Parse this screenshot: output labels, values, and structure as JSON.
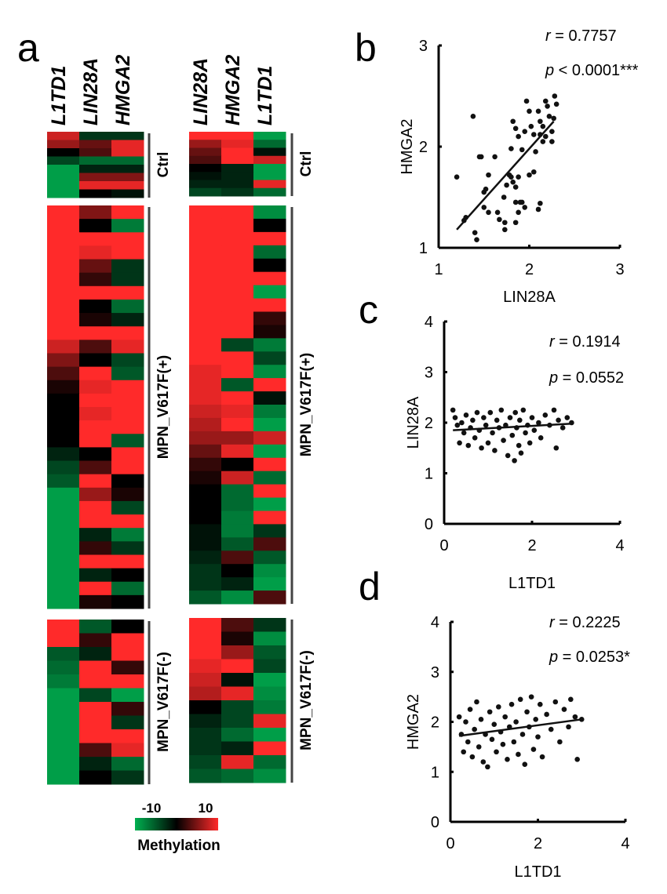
{
  "panel_labels": {
    "a": "a",
    "b": "b",
    "c": "c",
    "d": "d"
  },
  "colorbar": {
    "min_label": "-10",
    "max_label": "10",
    "title": "Methylation",
    "low_color": "#00b050",
    "mid_color": "#000000",
    "high_color": "#ff2a2a"
  },
  "chart_data": [
    {
      "type": "heatmap",
      "panel": "a-left",
      "columns": [
        "L1TD1",
        "LIN28A",
        "HMGA2"
      ],
      "range": [
        -10,
        10
      ],
      "groups": [
        {
          "name": "Ctrl",
          "rows": [
            [
              8,
              -3,
              -3
            ],
            [
              6,
              4,
              9
            ],
            [
              0,
              3,
              9
            ],
            [
              -4,
              -6,
              -6
            ],
            [
              -9,
              -2,
              -2
            ],
            [
              -9,
              5,
              5
            ],
            [
              -9,
              9,
              9
            ],
            [
              -9,
              0,
              -1
            ]
          ]
        },
        {
          "name": "MPN_V617F(+)",
          "rows": [
            [
              10,
              5,
              10
            ],
            [
              10,
              0,
              -7
            ],
            [
              10,
              10,
              10
            ],
            [
              10,
              9,
              10
            ],
            [
              10,
              4,
              -3
            ],
            [
              10,
              2,
              -3
            ],
            [
              10,
              10,
              10
            ],
            [
              10,
              0,
              -6
            ],
            [
              10,
              1,
              -2
            ],
            [
              10,
              10,
              10
            ],
            [
              8,
              3,
              9
            ],
            [
              5,
              0,
              -4
            ],
            [
              3,
              10,
              -5
            ],
            [
              1,
              9,
              10
            ],
            [
              0,
              10,
              10
            ],
            [
              0,
              9,
              10
            ],
            [
              0,
              10,
              10
            ],
            [
              0,
              10,
              -5
            ],
            [
              -2,
              0,
              10
            ],
            [
              -4,
              3,
              10
            ],
            [
              -5,
              10,
              0
            ],
            [
              -9,
              6,
              1
            ],
            [
              -9,
              10,
              -4
            ],
            [
              -9,
              10,
              10
            ],
            [
              -9,
              -2,
              -7
            ],
            [
              -9,
              2,
              -3
            ],
            [
              -9,
              10,
              10
            ],
            [
              -9,
              -2,
              0
            ],
            [
              -9,
              10,
              -6
            ],
            [
              -9,
              1,
              0
            ]
          ]
        },
        {
          "name": "MPN_V617F(-)",
          "rows": [
            [
              10,
              -5,
              0
            ],
            [
              10,
              2,
              10
            ],
            [
              -5,
              -2,
              10
            ],
            [
              -6,
              10,
              2
            ],
            [
              -7,
              10,
              10
            ],
            [
              -9,
              -4,
              -9
            ],
            [
              -9,
              10,
              2
            ],
            [
              -9,
              10,
              -3
            ],
            [
              -9,
              10,
              10
            ],
            [
              -9,
              3,
              9
            ],
            [
              -9,
              -2,
              -6
            ],
            [
              -9,
              0,
              -3
            ]
          ]
        }
      ]
    },
    {
      "type": "heatmap",
      "panel": "a-right",
      "columns": [
        "LIN28A",
        "HMGA2",
        "L1TD1"
      ],
      "range": [
        -10,
        10
      ],
      "groups": [
        {
          "name": "Ctrl",
          "rows": [
            [
              10,
              10,
              -9
            ],
            [
              6,
              9,
              -6
            ],
            [
              4,
              10,
              -1
            ],
            [
              3,
              10,
              8
            ],
            [
              0,
              -2,
              -9
            ],
            [
              -1,
              -2,
              -9
            ],
            [
              -2,
              -2,
              9
            ],
            [
              -4,
              -3,
              -6
            ]
          ]
        },
        {
          "name": "MPN_V617F(+)",
          "rows": [
            [
              10,
              10,
              -8
            ],
            [
              10,
              10,
              0
            ],
            [
              10,
              10,
              10
            ],
            [
              10,
              10,
              -6
            ],
            [
              10,
              10,
              0
            ],
            [
              10,
              10,
              10
            ],
            [
              10,
              10,
              -9
            ],
            [
              10,
              10,
              10
            ],
            [
              10,
              10,
              2
            ],
            [
              10,
              10,
              1
            ],
            [
              10,
              -4,
              -7
            ],
            [
              10,
              10,
              -4
            ],
            [
              9,
              10,
              -8
            ],
            [
              9,
              -5,
              10
            ],
            [
              9,
              10,
              -1
            ],
            [
              8,
              9,
              -7
            ],
            [
              7,
              10,
              -9
            ],
            [
              6,
              6,
              8
            ],
            [
              4,
              9,
              -9
            ],
            [
              2,
              0,
              10
            ],
            [
              1,
              8,
              -6
            ],
            [
              0,
              -6,
              10
            ],
            [
              0,
              -6,
              -9
            ],
            [
              0,
              -7,
              10
            ],
            [
              -1,
              -7,
              -3
            ],
            [
              -1,
              -5,
              3
            ],
            [
              -2,
              3,
              -5
            ],
            [
              -3,
              0,
              -8
            ],
            [
              -3,
              -2,
              -9
            ],
            [
              -5,
              -8,
              3
            ]
          ]
        },
        {
          "name": "MPN_V617F(-)",
          "rows": [
            [
              10,
              3,
              -3
            ],
            [
              10,
              1,
              -8
            ],
            [
              10,
              6,
              -5
            ],
            [
              9,
              10,
              -4
            ],
            [
              8,
              -1,
              -9
            ],
            [
              7,
              9,
              -8
            ],
            [
              0,
              -4,
              -7
            ],
            [
              -2,
              -4,
              9
            ],
            [
              -3,
              -6,
              -9
            ],
            [
              -3,
              -2,
              10
            ],
            [
              -4,
              9,
              -6
            ],
            [
              -5,
              -6,
              -8
            ]
          ]
        }
      ]
    },
    {
      "type": "scatter",
      "panel": "b",
      "xlabel": "LIN28A",
      "ylabel": "HMGA2",
      "xlim": [
        1,
        3
      ],
      "ylim": [
        1,
        3
      ],
      "xticks": [
        "1",
        "2",
        "3"
      ],
      "yticks": [
        "1",
        "2",
        "3"
      ],
      "stat_r_label": "r",
      "stat_r_value": " = 0.7757",
      "stat_p_label": "p",
      "stat_p_value": " < 0.0001***",
      "fit": [
        [
          1.2,
          1.18
        ],
        [
          2.27,
          2.25
        ]
      ],
      "points": [
        [
          1.2,
          1.7
        ],
        [
          1.38,
          2.3
        ],
        [
          1.4,
          1.15
        ],
        [
          1.42,
          1.08
        ],
        [
          1.3,
          1.3
        ],
        [
          1.28,
          1.27
        ],
        [
          1.45,
          1.9
        ],
        [
          1.47,
          1.9
        ],
        [
          1.62,
          1.9
        ],
        [
          1.5,
          1.55
        ],
        [
          1.52,
          1.58
        ],
        [
          1.55,
          1.72
        ],
        [
          1.5,
          1.4
        ],
        [
          1.55,
          1.35
        ],
        [
          1.65,
          1.35
        ],
        [
          1.67,
          1.28
        ],
        [
          1.73,
          1.25
        ],
        [
          1.73,
          1.18
        ],
        [
          1.72,
          1.5
        ],
        [
          1.75,
          1.62
        ],
        [
          1.78,
          1.72
        ],
        [
          1.8,
          1.7
        ],
        [
          1.82,
          1.65
        ],
        [
          1.85,
          1.6
        ],
        [
          1.88,
          1.7
        ],
        [
          1.9,
          1.45
        ],
        [
          1.85,
          1.45
        ],
        [
          1.92,
          1.45
        ],
        [
          1.88,
          1.35
        ],
        [
          1.85,
          1.25
        ],
        [
          1.95,
          1.4
        ],
        [
          2.0,
          1.72
        ],
        [
          2.05,
          1.75
        ],
        [
          2.1,
          1.38
        ],
        [
          2.12,
          1.44
        ],
        [
          1.8,
          1.98
        ],
        [
          1.82,
          2.25
        ],
        [
          1.85,
          2.18
        ],
        [
          1.88,
          2.1
        ],
        [
          1.92,
          1.97
        ],
        [
          1.95,
          2.15
        ],
        [
          1.97,
          2.45
        ],
        [
          2.0,
          2.35
        ],
        [
          2.02,
          2.2
        ],
        [
          2.05,
          2.12
        ],
        [
          2.07,
          1.95
        ],
        [
          2.1,
          2.35
        ],
        [
          2.12,
          2.25
        ],
        [
          2.15,
          2.2
        ],
        [
          2.15,
          2.05
        ],
        [
          2.18,
          2.45
        ],
        [
          2.2,
          2.4
        ],
        [
          2.22,
          2.3
        ],
        [
          2.25,
          2.15
        ],
        [
          2.27,
          2.28
        ],
        [
          2.28,
          2.5
        ],
        [
          2.3,
          2.42
        ],
        [
          2.25,
          2.05
        ],
        [
          2.18,
          2.1
        ],
        [
          2.12,
          2.12
        ]
      ]
    },
    {
      "type": "scatter",
      "panel": "c",
      "xlabel": "L1TD1",
      "ylabel": "LIN28A",
      "xlim": [
        0,
        4
      ],
      "ylim": [
        0,
        4
      ],
      "xticks": [
        "0",
        "2",
        "4"
      ],
      "yticks": [
        "0",
        "1",
        "2",
        "3",
        "4"
      ],
      "stat_r_label": "r",
      "stat_r_value": " = 0.1914",
      "stat_p_label": "p",
      "stat_p_value": " = 0.0552",
      "fit": [
        [
          0.2,
          1.85
        ],
        [
          2.9,
          1.98
        ]
      ],
      "points": [
        [
          0.2,
          2.25
        ],
        [
          0.25,
          2.1
        ],
        [
          0.3,
          1.95
        ],
        [
          0.35,
          1.6
        ],
        [
          0.4,
          2.0
        ],
        [
          0.45,
          1.8
        ],
        [
          0.5,
          2.15
        ],
        [
          0.55,
          1.55
        ],
        [
          0.6,
          1.9
        ],
        [
          0.65,
          2.05
        ],
        [
          0.7,
          1.7
        ],
        [
          0.75,
          2.2
        ],
        [
          0.8,
          1.85
        ],
        [
          0.85,
          1.5
        ],
        [
          0.9,
          2.1
        ],
        [
          0.95,
          1.95
        ],
        [
          1.0,
          1.6
        ],
        [
          1.05,
          2.2
        ],
        [
          1.1,
          1.8
        ],
        [
          1.15,
          1.45
        ],
        [
          1.2,
          2.05
        ],
        [
          1.25,
          1.9
        ],
        [
          1.3,
          2.25
        ],
        [
          1.35,
          1.65
        ],
        [
          1.4,
          1.95
        ],
        [
          1.45,
          1.35
        ],
        [
          1.5,
          2.1
        ],
        [
          1.55,
          1.75
        ],
        [
          1.6,
          1.25
        ],
        [
          1.62,
          2.2
        ],
        [
          1.65,
          1.9
        ],
        [
          1.7,
          1.55
        ],
        [
          1.72,
          2.05
        ],
        [
          1.75,
          1.4
        ],
        [
          1.8,
          2.25
        ],
        [
          1.85,
          1.8
        ],
        [
          1.9,
          1.95
        ],
        [
          1.95,
          1.6
        ],
        [
          2.0,
          2.1
        ],
        [
          2.05,
          1.85
        ],
        [
          2.15,
          2.0
        ],
        [
          2.2,
          1.7
        ],
        [
          2.3,
          2.15
        ],
        [
          2.4,
          1.95
        ],
        [
          2.5,
          2.25
        ],
        [
          2.55,
          1.5
        ],
        [
          2.6,
          2.05
        ],
        [
          2.7,
          1.9
        ],
        [
          2.8,
          2.1
        ],
        [
          2.9,
          2.0
        ]
      ]
    },
    {
      "type": "scatter",
      "panel": "d",
      "xlabel": "L1TD1",
      "ylabel": "HMGA2",
      "xlim": [
        0,
        4
      ],
      "ylim": [
        0,
        4
      ],
      "xticks": [
        "0",
        "2",
        "4"
      ],
      "yticks": [
        "0",
        "1",
        "2",
        "3",
        "4"
      ],
      "stat_r_label": "r",
      "stat_r_value": " = 0.2225",
      "stat_p_label": "p",
      "stat_p_value": " = 0.0253*",
      "fit": [
        [
          0.2,
          1.72
        ],
        [
          3.0,
          2.05
        ]
      ],
      "points": [
        [
          0.2,
          2.1
        ],
        [
          0.25,
          1.75
        ],
        [
          0.3,
          1.4
        ],
        [
          0.35,
          2.0
        ],
        [
          0.4,
          1.6
        ],
        [
          0.45,
          2.25
        ],
        [
          0.5,
          1.3
        ],
        [
          0.55,
          1.85
        ],
        [
          0.6,
          2.4
        ],
        [
          0.65,
          1.5
        ],
        [
          0.7,
          2.05
        ],
        [
          0.75,
          1.2
        ],
        [
          0.8,
          1.75
        ],
        [
          0.85,
          1.1
        ],
        [
          0.9,
          2.2
        ],
        [
          0.95,
          1.65
        ],
        [
          1.0,
          1.95
        ],
        [
          1.05,
          1.4
        ],
        [
          1.1,
          2.3
        ],
        [
          1.15,
          1.8
        ],
        [
          1.2,
          1.55
        ],
        [
          1.25,
          2.1
        ],
        [
          1.3,
          1.25
        ],
        [
          1.35,
          1.9
        ],
        [
          1.4,
          2.35
        ],
        [
          1.45,
          1.6
        ],
        [
          1.5,
          2.0
        ],
        [
          1.55,
          1.35
        ],
        [
          1.6,
          2.45
        ],
        [
          1.65,
          1.75
        ],
        [
          1.7,
          1.15
        ],
        [
          1.75,
          2.2
        ],
        [
          1.8,
          1.9
        ],
        [
          1.85,
          2.5
        ],
        [
          1.9,
          1.45
        ],
        [
          1.95,
          2.05
        ],
        [
          2.0,
          1.7
        ],
        [
          2.05,
          2.35
        ],
        [
          2.1,
          1.3
        ],
        [
          2.2,
          2.15
        ],
        [
          2.3,
          1.85
        ],
        [
          2.4,
          2.4
        ],
        [
          2.5,
          1.6
        ],
        [
          2.6,
          2.25
        ],
        [
          2.7,
          1.9
        ],
        [
          2.75,
          2.45
        ],
        [
          2.85,
          2.1
        ],
        [
          2.9,
          1.25
        ],
        [
          3.0,
          2.05
        ]
      ]
    }
  ]
}
